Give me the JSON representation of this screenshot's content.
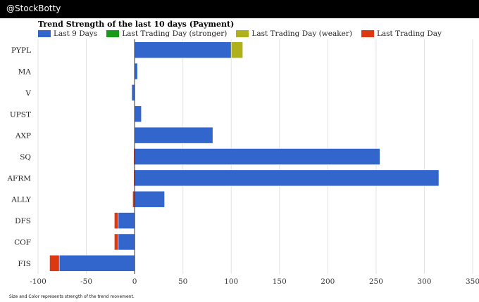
{
  "header": {
    "brand": "@StockBotty"
  },
  "footnote": "Size and Color represents strength of the trend movement.",
  "colors": {
    "last9": "#3366cc",
    "stronger": "#1a9a1a",
    "weaker": "#aeb11c",
    "day": "#dc3912",
    "grid": "#e3e3e3"
  },
  "chart_data": {
    "type": "bar",
    "orientation": "horizontal",
    "stacked": true,
    "title": "Trend Strength of the last 10 days (Payment)",
    "categories": [
      "PYPL",
      "MA",
      "V",
      "UPST",
      "AXP",
      "SQ",
      "AFRM",
      "ALLY",
      "DFS",
      "COF",
      "FIS"
    ],
    "xlim": [
      -100,
      350
    ],
    "xticks": [
      -100,
      -50,
      0,
      50,
      100,
      150,
      200,
      250,
      300,
      350
    ],
    "legend": [
      {
        "label": "Last 9 Days",
        "color_key": "last9"
      },
      {
        "label": "Last Trading Day (stronger)",
        "color_key": "stronger"
      },
      {
        "label": "Last Trading Day (weaker)",
        "color_key": "weaker"
      },
      {
        "label": "Last Trading Day",
        "color_key": "day"
      }
    ],
    "series": [
      {
        "name": "Last 9 Days",
        "color_key": "last9",
        "values": [
          100,
          3,
          -3,
          7,
          81,
          254,
          315,
          31,
          -17,
          -17,
          -78
        ]
      },
      {
        "name": "Last Trading Day (stronger)",
        "color_key": "stronger",
        "values": [
          0,
          0,
          0,
          0,
          0,
          0,
          0,
          0,
          0,
          0,
          0
        ]
      },
      {
        "name": "Last Trading Day (weaker)",
        "color_key": "weaker",
        "values": [
          12,
          0,
          0,
          0,
          0,
          0,
          0,
          0,
          0,
          0,
          0
        ]
      },
      {
        "name": "Last Trading Day",
        "color_key": "day",
        "values": [
          0,
          0,
          0,
          0,
          0,
          -1,
          -1,
          -2,
          -4,
          -4,
          -10
        ]
      }
    ]
  }
}
